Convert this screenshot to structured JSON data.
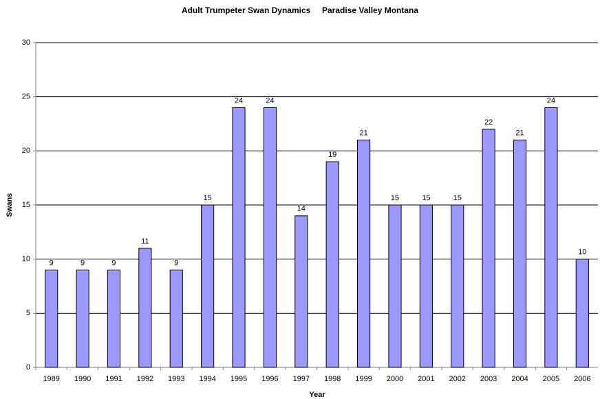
{
  "chart_data": {
    "type": "bar",
    "title": "Adult Trumpeter Swan Dynamics     Paradise Valley Montana",
    "x_label": "Year",
    "y_label": "Swans",
    "categories": [
      "1989",
      "1990",
      "1991",
      "1992",
      "1993",
      "1994",
      "1995",
      "1996",
      "1997",
      "1998",
      "1999",
      "2000",
      "2001",
      "2002",
      "2003",
      "2004",
      "2005",
      "2006"
    ],
    "values": [
      9,
      9,
      9,
      11,
      9,
      15,
      24,
      24,
      14,
      19,
      21,
      15,
      15,
      15,
      22,
      21,
      24,
      10
    ],
    "color": "#9999ff",
    "ylim": [
      0,
      30
    ],
    "yticks": [
      0,
      5,
      10,
      15,
      20,
      25,
      30
    ],
    "grid": true
  }
}
